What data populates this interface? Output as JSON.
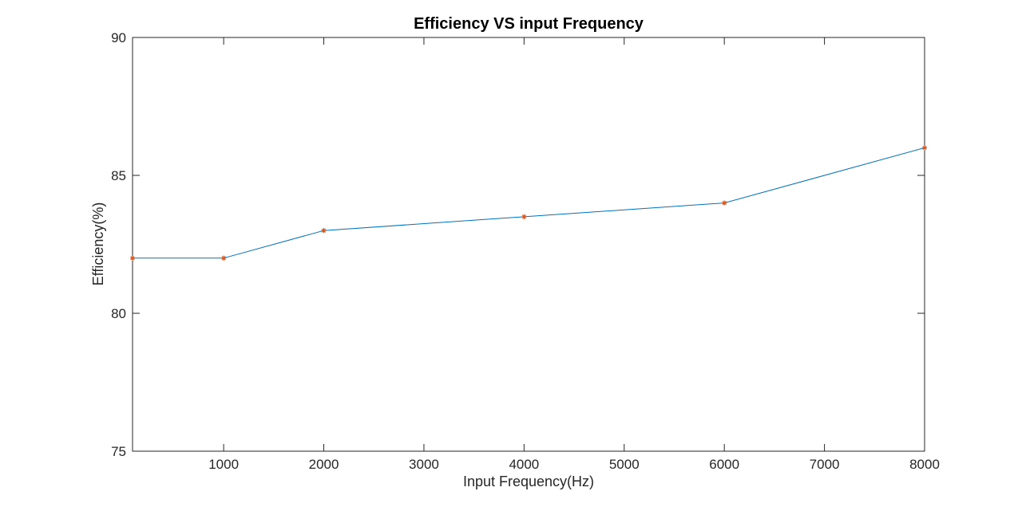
{
  "chart_data": {
    "type": "line",
    "title": "Efficiency VS input Frequency",
    "xlabel": "Input Frequency(Hz)",
    "ylabel": "Efficiency(%)",
    "xlim": [
      90,
      8000
    ],
    "ylim": [
      75,
      90
    ],
    "xticks": [
      1000,
      2000,
      3000,
      4000,
      5000,
      6000,
      7000,
      8000
    ],
    "yticks": [
      75,
      80,
      85,
      90
    ],
    "grid": false,
    "box": true,
    "series": [
      {
        "x": [
          90,
          1000,
          2000,
          4000,
          6000,
          8000
        ],
        "y": [
          82,
          82,
          83,
          83.5,
          84,
          86
        ],
        "line_color": "#0072BD",
        "marker": "*",
        "marker_color": "#D95319"
      }
    ]
  }
}
